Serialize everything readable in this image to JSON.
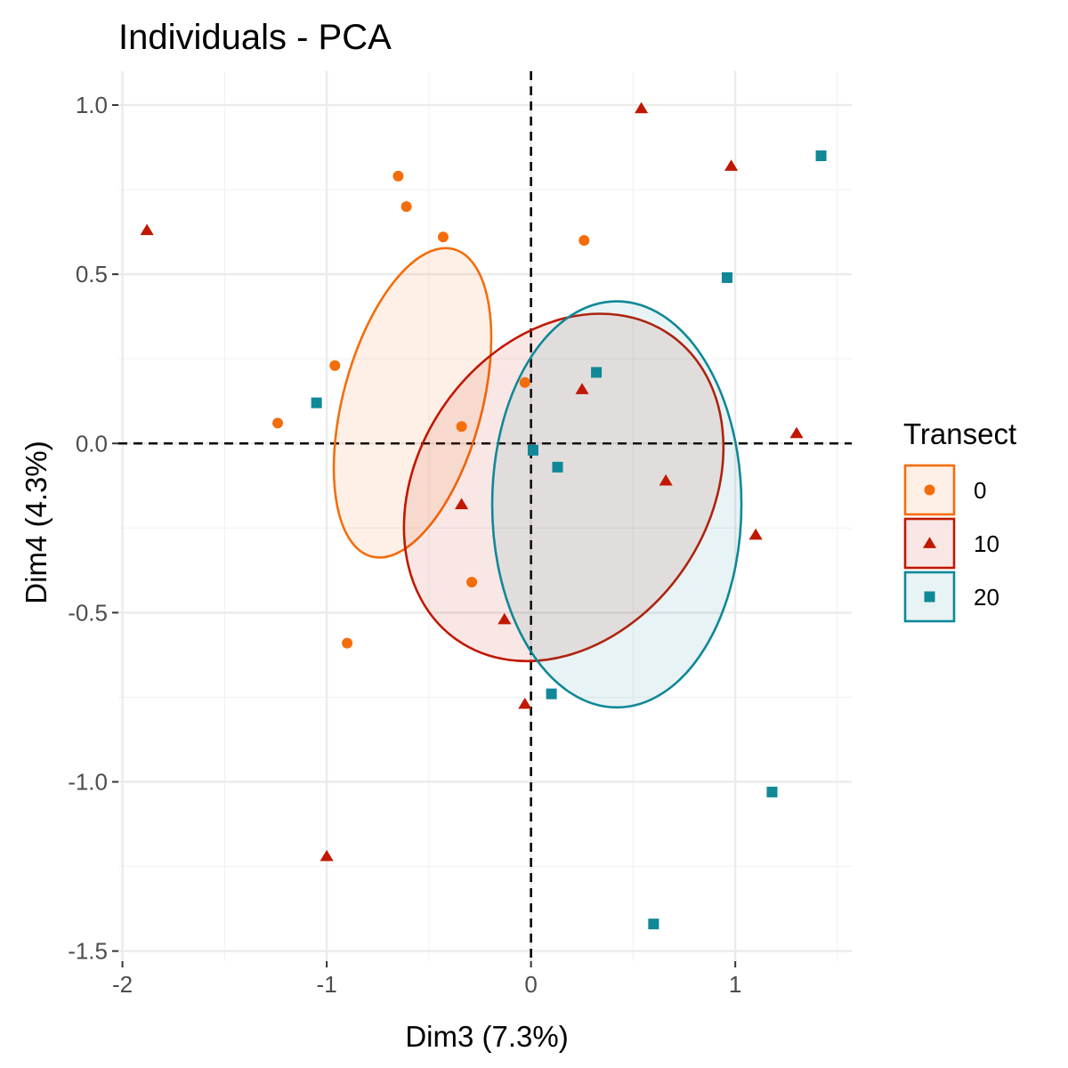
{
  "chart_data": {
    "type": "scatter",
    "title": "Individuals - PCA",
    "xlabel": "Dim3 (7.3%)",
    "ylabel": "Dim4 (4.3%)",
    "xlim": [
      -2.02,
      1.57
    ],
    "ylim": [
      -1.53,
      1.1
    ],
    "xticks": [
      -2,
      -1,
      0,
      1
    ],
    "xtick_labels": [
      "-2",
      "-1",
      "0",
      "1"
    ],
    "yticks": [
      1.0,
      0.5,
      0.0,
      -0.5,
      -1.0,
      -1.5
    ],
    "ytick_labels": [
      "1.0",
      "0.5",
      "0.0",
      "-0.5",
      "-1.0",
      "-1.5"
    ],
    "grid": true,
    "reference_lines": {
      "x": 0,
      "y": 0,
      "style": "dashed"
    },
    "legend": {
      "title": "Transect",
      "placement": "right",
      "items": [
        {
          "label": "0",
          "color": "#F46D0B",
          "shape": "circle"
        },
        {
          "label": "10",
          "color": "#C01800",
          "shape": "triangle"
        },
        {
          "label": "20",
          "color": "#0F8898",
          "shape": "square"
        }
      ]
    },
    "series": [
      {
        "name": "0",
        "color": "#F46D0B",
        "shape": "circle",
        "points": [
          [
            -0.65,
            0.79
          ],
          [
            -0.61,
            0.7
          ],
          [
            -0.43,
            0.61
          ],
          [
            0.26,
            0.6
          ],
          [
            -0.96,
            0.23
          ],
          [
            -0.03,
            0.18
          ],
          [
            -1.24,
            0.06
          ],
          [
            -0.34,
            0.05
          ],
          [
            -0.29,
            -0.41
          ],
          [
            -0.9,
            -0.59
          ]
        ],
        "ellipse": {
          "center": [
            -0.58,
            0.12
          ],
          "rx": 0.34,
          "ry": 0.47,
          "angle": 15
        }
      },
      {
        "name": "10",
        "color": "#C01800",
        "shape": "triangle",
        "points": [
          [
            0.54,
            0.99
          ],
          [
            0.98,
            0.82
          ],
          [
            -1.88,
            0.63
          ],
          [
            0.25,
            0.16
          ],
          [
            1.3,
            0.03
          ],
          [
            0.66,
            -0.11
          ],
          [
            -0.34,
            -0.18
          ],
          [
            1.1,
            -0.27
          ],
          [
            -0.13,
            -0.52
          ],
          [
            -0.03,
            -0.77
          ],
          [
            -1.0,
            -1.22
          ]
        ],
        "ellipse": {
          "center": [
            0.16,
            -0.13
          ],
          "rx": 0.71,
          "ry": 0.55,
          "angle": 35
        }
      },
      {
        "name": "20",
        "color": "#0F8898",
        "shape": "square",
        "points": [
          [
            1.42,
            0.85
          ],
          [
            0.96,
            0.49
          ],
          [
            0.32,
            0.21
          ],
          [
            -1.05,
            0.12
          ],
          [
            0.01,
            -0.02
          ],
          [
            0.13,
            -0.07
          ],
          [
            0.1,
            -0.74
          ],
          [
            1.18,
            -1.03
          ],
          [
            0.6,
            -1.42
          ]
        ],
        "ellipse": {
          "center": [
            0.42,
            -0.18
          ],
          "rx": 0.61,
          "ry": 0.6,
          "angle": 0
        }
      }
    ]
  }
}
